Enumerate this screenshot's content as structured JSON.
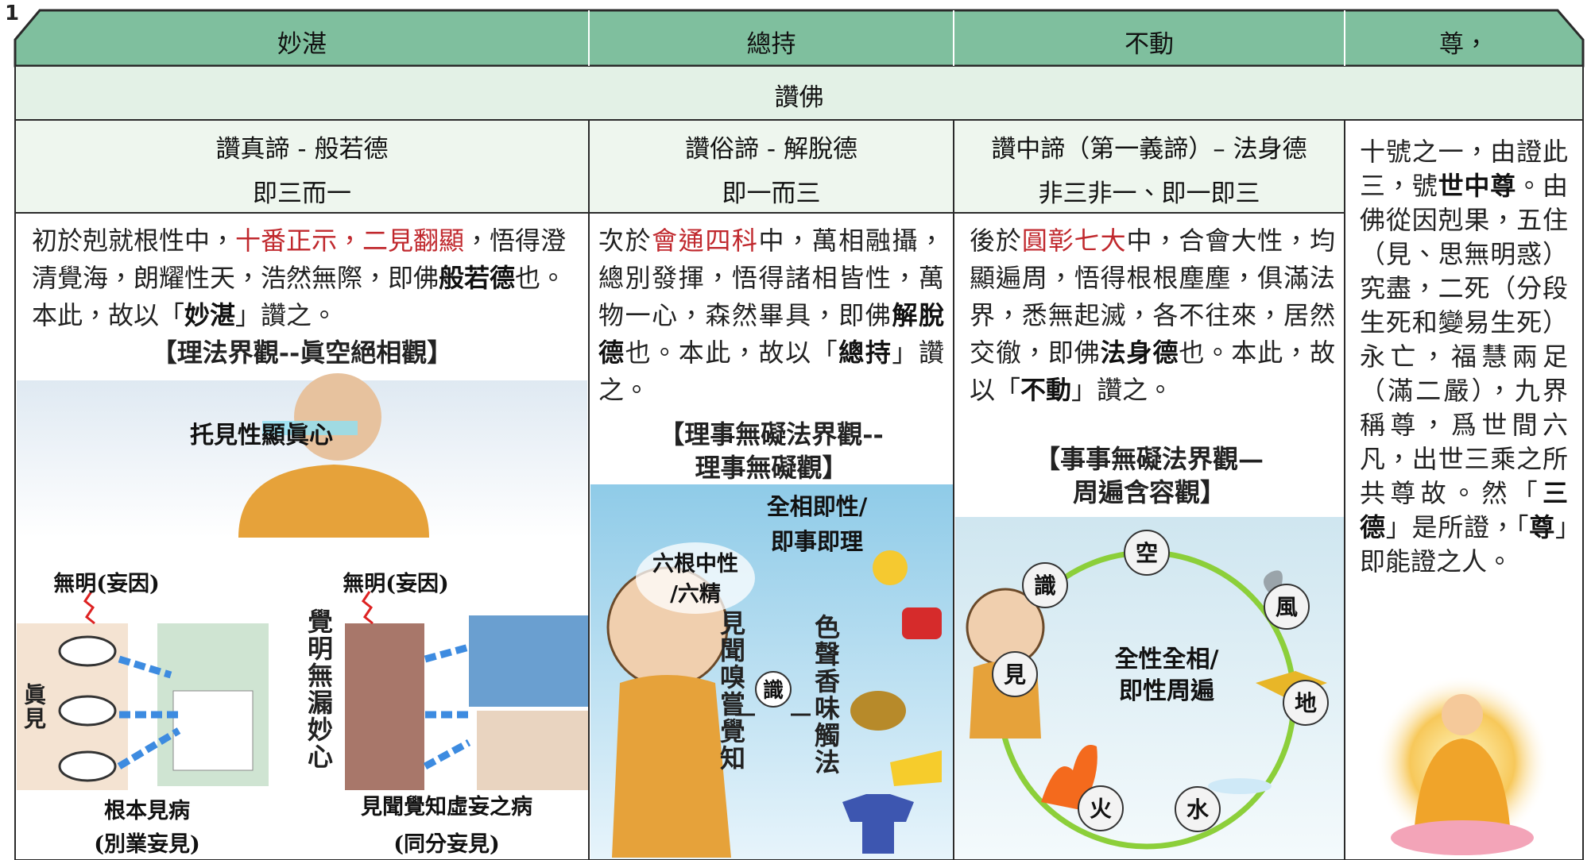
{
  "page_number": "1",
  "header": {
    "columns": [
      "妙湛",
      "總持",
      "不動",
      "尊，"
    ],
    "banner": "讚佛"
  },
  "columns": [
    {
      "title": "讚真諦 - 般若德",
      "subtitle": "即三而一",
      "text": [
        "初於剋就根性中，",
        "十番正示，二見翻顯",
        "，悟得澄清覺海，朗耀性天，浩然無際，即佛",
        "般若德",
        "也。本此，故以「",
        "妙湛",
        "」讚之。"
      ],
      "heading": [
        "【理法界觀--眞空絕相觀】"
      ],
      "figure": {
        "caption": "托見性顯眞心",
        "labels": [
          "無明(妄因)",
          "無明(妄因)",
          "眞見",
          "根本見病",
          "(別業妄見)",
          "覺明無漏妙心",
          "見聞覺知虛妄之病",
          "(同分妄見)"
        ]
      }
    },
    {
      "title": "讚俗諦 - 解脫德",
      "subtitle": "即一而三",
      "text": [
        "次於",
        "會通四科",
        "中，萬相融攝，總別發揮，悟得諸相皆性，萬物一心，森然畢具，即佛",
        "解脫德",
        "也。本此，故以「",
        "總持",
        "」讚之。"
      ],
      "heading": [
        "【理事無礙法界觀--",
        "理事無礙觀】"
      ],
      "figure": {
        "labels": [
          [
            "全相即性/",
            "即事即理"
          ],
          [
            "六根中性",
            "/六精"
          ],
          "見聞嗅嘗覺知",
          "識",
          "色聲香味觸法"
        ]
      }
    },
    {
      "title": "讚中諦（第一義諦）– 法身德",
      "subtitle": "非三非一、即一即三",
      "text": [
        "後於",
        "圓彰七大",
        "中，合會大性，均顯遍周，悟得根根塵塵，俱滿法界，悉無起滅，各不往來，居然交徹，即佛",
        "法身德",
        "也。本此，故以「",
        "不動",
        "」讚之。"
      ],
      "heading": [
        "【事事無礙法界觀—",
        "周遍含容觀】"
      ],
      "figure": {
        "nodes": [
          "空",
          "風",
          "地",
          "水",
          "火",
          "見",
          "識"
        ],
        "center": [
          "全性全相/",
          "即性周遍"
        ]
      }
    }
  ],
  "side": {
    "text": [
      "十號之一，由證此三，號",
      "世中尊",
      "。由佛從因剋果，五住（見、思無明惑）究盡，二死（分段生死和變易生死）永亡，福慧兩足（滿二嚴），九界稱尊，爲世間六凡，出世三乘之所共尊故。然「",
      "三德",
      "」是所證，「",
      "尊",
      "」即能證之人。"
    ]
  }
}
